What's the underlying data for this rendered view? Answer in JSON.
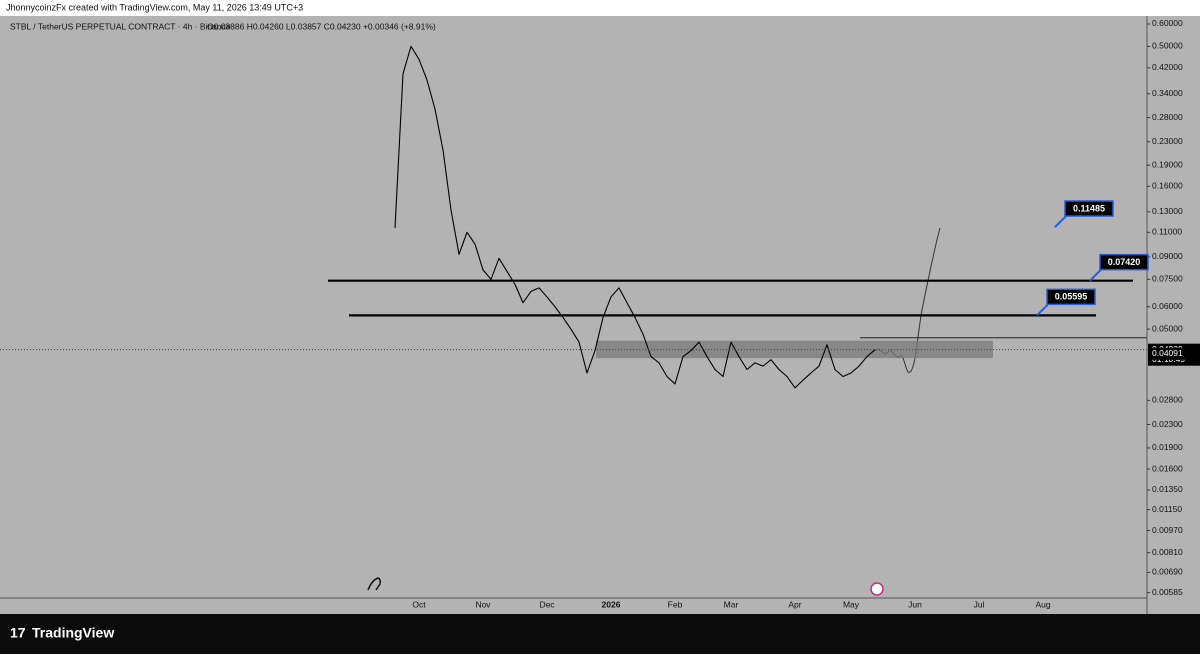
{
  "header": {
    "credit": "JhonnycoinzFx created with TradingView.com, May 11, 2026 13:49 UTC+3",
    "symbol": "STBL / TetherUS PERPETUAL CONTRACT · 4h · Binance",
    "ohlc": "O0.03886 H0.04260 L0.03857 C0.04230 +0.00346 (+8.91%)"
  },
  "footer": {
    "brand": "TradingView"
  },
  "chart_data": {
    "type": "line",
    "log_scale": true,
    "color": "#000000",
    "categories": [
      null,
      null,
      null,
      "Oct",
      null,
      null,
      null,
      null,
      null,
      null,
      null,
      "Nov",
      null,
      null,
      null,
      null,
      null,
      null,
      null,
      "Dec",
      null,
      null,
      null,
      null,
      null,
      null,
      null,
      "2026",
      null,
      null,
      null,
      null,
      null,
      null,
      null,
      "Feb",
      null,
      null,
      null,
      null,
      null,
      null,
      "Mar",
      null,
      null,
      null,
      null,
      null,
      null,
      null,
      "Apr",
      null,
      null,
      null,
      null,
      null,
      null,
      "May",
      null,
      null,
      null,
      null,
      null,
      null,
      null,
      "Jun",
      null,
      null,
      null,
      null,
      null,
      null,
      null,
      "Jul",
      null,
      null,
      null,
      null,
      null,
      null,
      null,
      "Aug",
      null,
      null,
      null,
      null,
      null,
      null,
      null,
      null,
      null,
      null,
      null,
      null
    ],
    "values": [
      0.114,
      0.4,
      0.5,
      0.45,
      0.38,
      0.3,
      0.215,
      0.132,
      0.092,
      0.11,
      0.1,
      0.081,
      0.075,
      0.089,
      0.08,
      0.072,
      0.062,
      0.068,
      0.07,
      0.065,
      0.06,
      0.055,
      0.05,
      0.045,
      0.035,
      0.042,
      0.055,
      0.065,
      0.07,
      0.062,
      0.055,
      0.048,
      0.04,
      0.038,
      0.034,
      0.032,
      0.04,
      0.042,
      0.045,
      0.04,
      0.036,
      0.034,
      0.045,
      0.04,
      0.036,
      0.038,
      0.037,
      0.039,
      0.036,
      0.034,
      0.031,
      0.033,
      0.035,
      0.037,
      0.044,
      0.036,
      0.034,
      0.035,
      0.037,
      0.04,
      0.0423,
      null,
      null,
      null,
      null,
      null,
      null,
      null,
      null,
      null,
      null,
      null,
      null,
      null,
      null,
      null,
      null,
      null,
      null,
      null,
      null,
      null,
      null,
      null,
      null,
      null,
      null,
      null,
      null,
      null,
      null,
      null,
      null,
      null
    ],
    "ylim": [
      0.0056,
      0.63
    ],
    "yticks": [
      {
        "value": 0.6,
        "label": "0.60000"
      },
      {
        "value": 0.5,
        "label": "0.50000"
      },
      {
        "value": 0.42,
        "label": "0.42000"
      },
      {
        "value": 0.34,
        "label": "0.34000"
      },
      {
        "value": 0.28,
        "label": "0.28000"
      },
      {
        "value": 0.23,
        "label": "0.23000"
      },
      {
        "value": 0.19,
        "label": "0.19000"
      },
      {
        "value": 0.16,
        "label": "0.16000"
      },
      {
        "value": 0.13,
        "label": "0.13000"
      },
      {
        "value": 0.11,
        "label": "0.11000"
      },
      {
        "value": 0.09,
        "label": "0.09000"
      },
      {
        "value": 0.075,
        "label": "0.07500"
      },
      {
        "value": 0.06,
        "label": "0.06000"
      },
      {
        "value": 0.05,
        "label": "0.05000"
      },
      {
        "value": 0.028,
        "label": "0.02800"
      },
      {
        "value": 0.023,
        "label": "0.02300"
      },
      {
        "value": 0.019,
        "label": "0.01900"
      },
      {
        "value": 0.016,
        "label": "0.01600"
      },
      {
        "value": 0.0135,
        "label": "0.01350"
      },
      {
        "value": 0.0115,
        "label": "0.01150"
      },
      {
        "value": 0.0097,
        "label": "0.00970"
      },
      {
        "value": 0.0081,
        "label": "0.00810"
      },
      {
        "value": 0.0069,
        "label": "0.00690"
      },
      {
        "value": 0.00585,
        "label": "0.00585"
      }
    ],
    "last_price": {
      "value": 0.0423,
      "label": "0.04230"
    },
    "countdown": "01:10:49",
    "marker_price": {
      "value": 0.04091,
      "label": "0.04091"
    },
    "zone": {
      "top": 0.0455,
      "bottom": 0.0395
    },
    "levels": [
      {
        "value": 0.11485,
        "label": "0.11485"
      },
      {
        "value": 0.0742,
        "label": "0.07420"
      },
      {
        "value": 0.05595,
        "label": "0.05595"
      }
    ]
  }
}
